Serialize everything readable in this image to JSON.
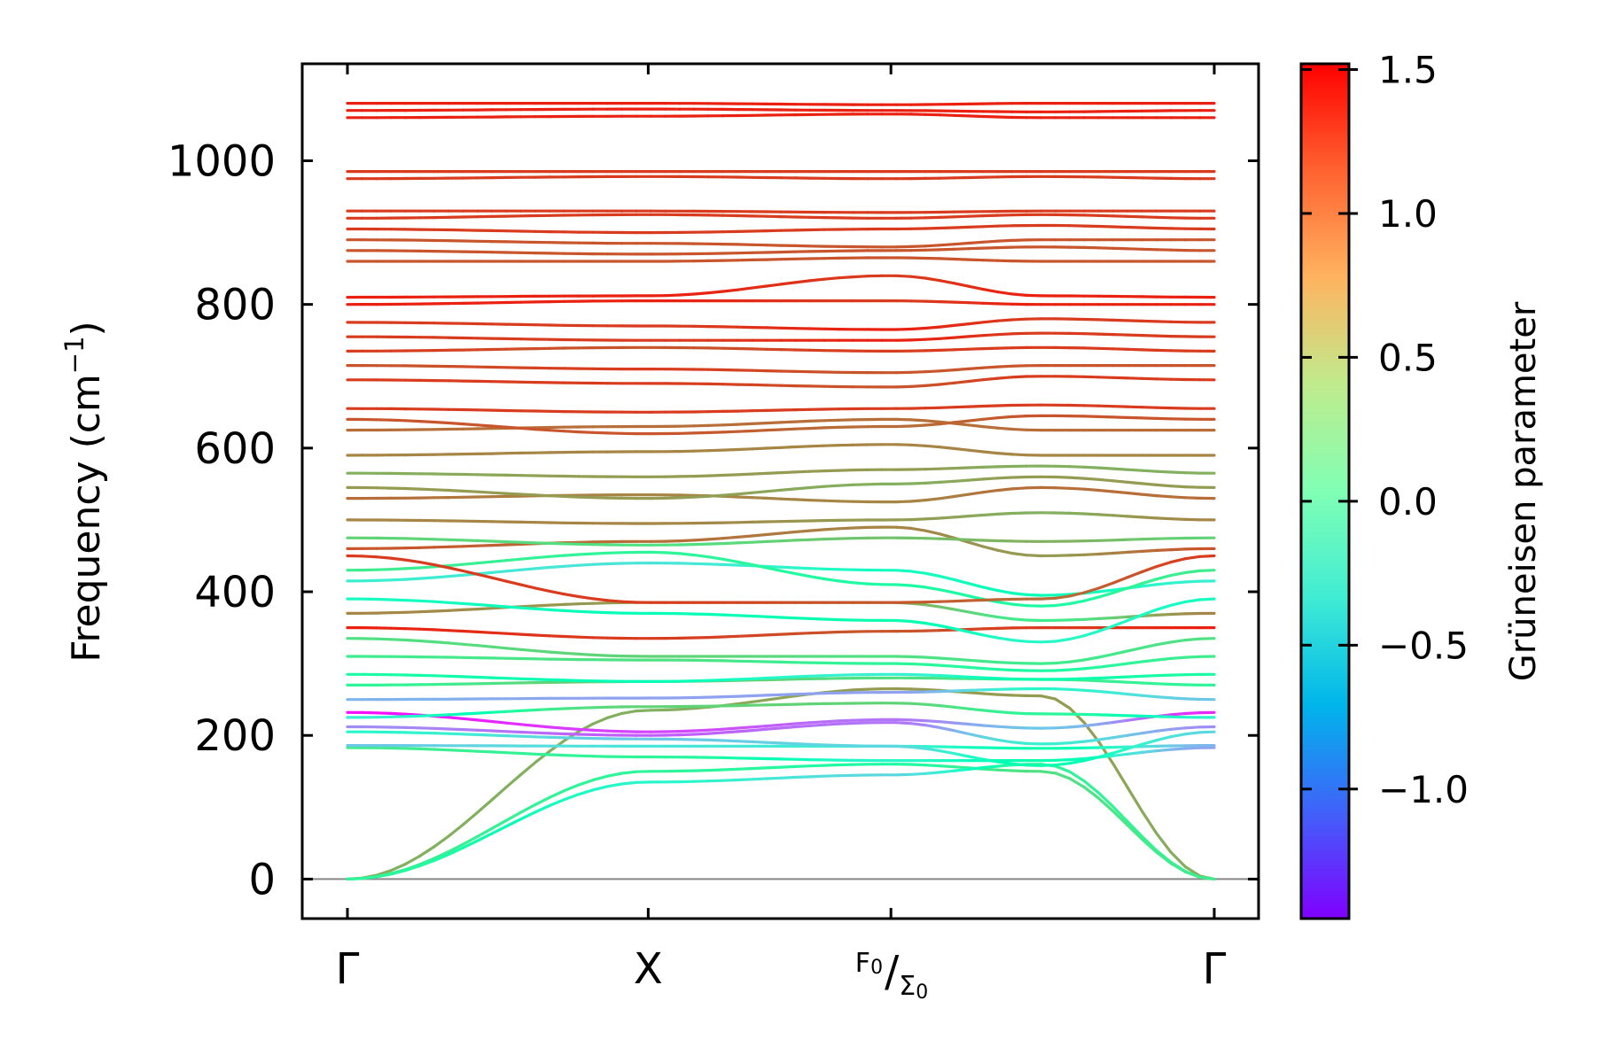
{
  "chart_data": {
    "type": "line",
    "title": "",
    "ylabel": "Frequency (cm",
    "ylabel_sup": "−1",
    "ylabel_close": ")",
    "ylim": [
      -55,
      1135
    ],
    "y_ticks": [
      0,
      200,
      400,
      600,
      800,
      1000
    ],
    "y_tick_labels": [
      "0",
      "200",
      "400",
      "600",
      "800",
      "1000"
    ],
    "k_path": {
      "positions": [
        0,
        0.347,
        0.627,
        1.0
      ],
      "labels": [
        "Γ",
        "X",
        "",
        "Γ"
      ],
      "special_label": {
        "index": 2,
        "top": "F",
        "top_sub": "0",
        "slash": "/",
        "bottom": "Σ",
        "bottom_sub": "0"
      }
    },
    "colorbar": {
      "label": "Grüneisen parameter",
      "range": [
        -1.45,
        1.52
      ],
      "ticks": [
        -1.0,
        -0.5,
        0.0,
        0.5,
        1.0,
        1.5
      ],
      "tick_labels": [
        "−1.0",
        "−0.5",
        "0.0",
        "0.5",
        "1.0",
        "1.5"
      ],
      "colormap": "rainbow"
    },
    "zero_line": {
      "value": 0,
      "color": "#888888"
    },
    "series": [
      {
        "f": [
          0,
          235,
          265,
          255,
          0
        ],
        "g": [
          0.8,
          0.8,
          0.9,
          0.9,
          0.8
        ]
      },
      {
        "f": [
          0,
          150,
          160,
          150,
          0
        ],
        "g": [
          0.4,
          0.3,
          0.2,
          0.5,
          0.4
        ]
      },
      {
        "f": [
          0,
          135,
          145,
          160,
          0
        ],
        "g": [
          0.3,
          -0.2,
          -0.5,
          0.3,
          0.4
        ]
      },
      {
        "f": [
          183,
          170,
          165,
          165,
          183
        ],
        "g": [
          0.4,
          0.3,
          -0.2,
          0.1,
          -0.8
        ]
      },
      {
        "f": [
          186,
          185,
          185,
          182,
          186
        ],
        "g": [
          -0.6,
          -0.4,
          -0.3,
          0.1,
          -0.7
        ]
      },
      {
        "f": [
          205,
          195,
          185,
          158,
          205
        ],
        "g": [
          -0.2,
          -0.6,
          -0.5,
          0.1,
          -0.5
        ]
      },
      {
        "f": [
          212,
          200,
          218,
          188,
          212
        ],
        "g": [
          -0.9,
          -1.1,
          -1.0,
          -0.3,
          -0.9
        ]
      },
      {
        "f": [
          232,
          205,
          222,
          210,
          232
        ],
        "g": [
          -1.4,
          -1.2,
          -1.0,
          -0.6,
          -1.3
        ]
      },
      {
        "f": [
          225,
          240,
          245,
          230,
          225
        ],
        "g": [
          -0.3,
          0.6,
          0.6,
          0.3,
          -0.2
        ]
      },
      {
        "f": [
          250,
          252,
          260,
          265,
          250
        ],
        "g": [
          -0.7,
          -0.8,
          -0.8,
          -0.2,
          -0.6
        ]
      },
      {
        "f": [
          270,
          275,
          280,
          278,
          270
        ],
        "g": [
          0.3,
          0.7,
          0.5,
          0.4,
          0.3
        ]
      },
      {
        "f": [
          285,
          275,
          285,
          278,
          285
        ],
        "g": [
          0.2,
          0.0,
          -0.3,
          0.1,
          0.2
        ]
      },
      {
        "f": [
          310,
          305,
          300,
          290,
          310
        ],
        "g": [
          0.4,
          0.5,
          0.3,
          0.2,
          0.4
        ]
      },
      {
        "f": [
          335,
          310,
          310,
          300,
          335
        ],
        "g": [
          0.5,
          0.6,
          0.5,
          0.4,
          0.5
        ]
      },
      {
        "f": [
          350,
          335,
          345,
          350,
          350
        ],
        "g": [
          1.4,
          1.3,
          1.2,
          1.3,
          1.4
        ]
      },
      {
        "f": [
          370,
          385,
          385,
          360,
          370
        ],
        "g": [
          1.0,
          0.9,
          0.8,
          0.4,
          1.0
        ]
      },
      {
        "f": [
          390,
          370,
          360,
          330,
          390
        ],
        "g": [
          -0.1,
          0.0,
          0.1,
          -0.2,
          -0.1
        ]
      },
      {
        "f": [
          415,
          440,
          430,
          395,
          415
        ],
        "g": [
          -0.3,
          -0.4,
          -0.1,
          0.0,
          -0.3
        ]
      },
      {
        "f": [
          430,
          455,
          410,
          380,
          430
        ],
        "g": [
          0.4,
          0.3,
          0.2,
          0.2,
          0.4
        ]
      },
      {
        "f": [
          450,
          385,
          385,
          390,
          450
        ],
        "g": [
          1.3,
          1.3,
          1.2,
          1.1,
          1.3
        ]
      },
      {
        "f": [
          460,
          470,
          490,
          450,
          460
        ],
        "g": [
          1.2,
          1.1,
          1.0,
          0.9,
          1.2
        ]
      },
      {
        "f": [
          475,
          465,
          475,
          470,
          475
        ],
        "g": [
          0.6,
          0.5,
          0.7,
          0.8,
          0.6
        ]
      },
      {
        "f": [
          500,
          495,
          500,
          510,
          500
        ],
        "g": [
          1.0,
          1.0,
          0.9,
          0.8,
          1.0
        ]
      },
      {
        "f": [
          530,
          535,
          525,
          545,
          530
        ],
        "g": [
          1.1,
          1.0,
          1.0,
          1.1,
          1.1
        ]
      },
      {
        "f": [
          545,
          530,
          550,
          560,
          545
        ],
        "g": [
          0.9,
          0.9,
          0.8,
          0.9,
          0.9
        ]
      },
      {
        "f": [
          565,
          560,
          570,
          575,
          565
        ],
        "g": [
          0.8,
          0.9,
          0.9,
          0.8,
          0.8
        ]
      },
      {
        "f": [
          590,
          595,
          605,
          590,
          590
        ],
        "g": [
          1.0,
          1.0,
          1.0,
          1.0,
          1.0
        ]
      },
      {
        "f": [
          625,
          630,
          640,
          625,
          625
        ],
        "g": [
          1.1,
          1.1,
          1.1,
          1.1,
          1.1
        ]
      },
      {
        "f": [
          640,
          620,
          630,
          645,
          640
        ],
        "g": [
          1.2,
          1.2,
          1.1,
          1.2,
          1.2
        ]
      },
      {
        "f": [
          655,
          650,
          655,
          660,
          655
        ],
        "g": [
          1.3,
          1.3,
          1.3,
          1.3,
          1.3
        ]
      },
      {
        "f": [
          695,
          690,
          685,
          700,
          695
        ],
        "g": [
          1.3,
          1.3,
          1.2,
          1.3,
          1.3
        ]
      },
      {
        "f": [
          715,
          710,
          705,
          715,
          715
        ],
        "g": [
          1.2,
          1.3,
          1.2,
          1.2,
          1.2
        ]
      },
      {
        "f": [
          735,
          740,
          735,
          740,
          735
        ],
        "g": [
          1.3,
          1.2,
          1.3,
          1.3,
          1.3
        ]
      },
      {
        "f": [
          755,
          750,
          750,
          760,
          755
        ],
        "g": [
          1.3,
          1.3,
          1.4,
          1.3,
          1.3
        ]
      },
      {
        "f": [
          775,
          770,
          765,
          780,
          775
        ],
        "g": [
          1.3,
          1.3,
          1.4,
          1.3,
          1.3
        ]
      },
      {
        "f": [
          800,
          805,
          805,
          800,
          800
        ],
        "g": [
          1.4,
          1.4,
          1.3,
          1.4,
          1.4
        ]
      },
      {
        "f": [
          810,
          812,
          840,
          812,
          810
        ],
        "g": [
          1.4,
          1.4,
          1.3,
          1.4,
          1.4
        ]
      },
      {
        "f": [
          860,
          860,
          865,
          860,
          860
        ],
        "g": [
          1.2,
          1.2,
          1.2,
          1.2,
          1.2
        ]
      },
      {
        "f": [
          875,
          870,
          875,
          880,
          875
        ],
        "g": [
          1.2,
          1.2,
          1.2,
          1.2,
          1.2
        ]
      },
      {
        "f": [
          890,
          885,
          880,
          890,
          890
        ],
        "g": [
          1.2,
          1.2,
          1.2,
          1.2,
          1.2
        ]
      },
      {
        "f": [
          905,
          900,
          905,
          910,
          905
        ],
        "g": [
          1.3,
          1.3,
          1.3,
          1.3,
          1.3
        ]
      },
      {
        "f": [
          920,
          925,
          920,
          925,
          920
        ],
        "g": [
          1.3,
          1.3,
          1.3,
          1.3,
          1.3
        ]
      },
      {
        "f": [
          930,
          930,
          928,
          930,
          930
        ],
        "g": [
          1.3,
          1.3,
          1.3,
          1.3,
          1.3
        ]
      },
      {
        "f": [
          975,
          978,
          975,
          978,
          975
        ],
        "g": [
          1.3,
          1.3,
          1.3,
          1.3,
          1.3
        ]
      },
      {
        "f": [
          985,
          985,
          985,
          985,
          985
        ],
        "g": [
          1.3,
          1.3,
          1.3,
          1.3,
          1.3
        ]
      },
      {
        "f": [
          1060,
          1062,
          1065,
          1060,
          1060
        ],
        "g": [
          1.4,
          1.4,
          1.4,
          1.4,
          1.4
        ]
      },
      {
        "f": [
          1070,
          1072,
          1070,
          1068,
          1070
        ],
        "g": [
          1.4,
          1.4,
          1.4,
          1.4,
          1.4
        ]
      },
      {
        "f": [
          1080,
          1080,
          1078,
          1080,
          1080
        ],
        "g": [
          1.4,
          1.4,
          1.4,
          1.4,
          1.4
        ]
      }
    ],
    "series_x": [
      0,
      0.347,
      0.627,
      0.8,
      1.0
    ]
  }
}
